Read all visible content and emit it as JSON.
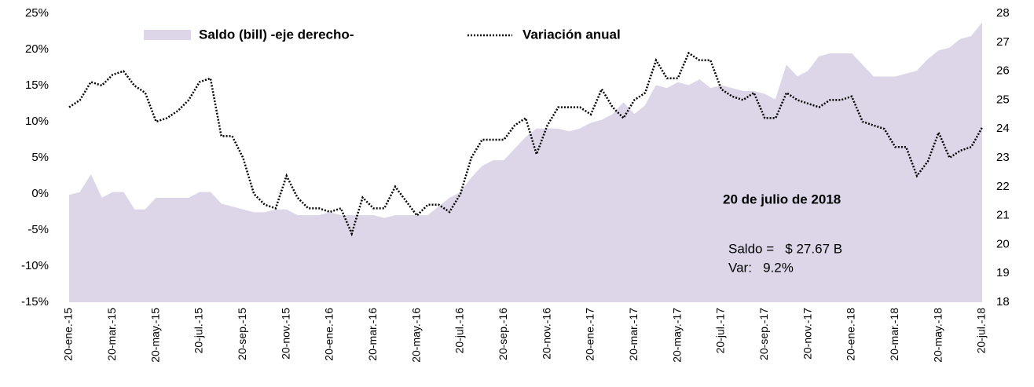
{
  "chart_data": {
    "type": "line",
    "categories": [
      "20-ene.-15",
      null,
      null,
      null,
      "20-mar.-15",
      null,
      null,
      null,
      "20-may.-15",
      null,
      null,
      null,
      "20-jul.-15",
      null,
      null,
      null,
      "20-sep.-15",
      null,
      null,
      null,
      "20-nov.-15",
      null,
      null,
      null,
      "20-ene.-16",
      null,
      null,
      null,
      "20-mar.-16",
      null,
      null,
      null,
      "20-may.-16",
      null,
      null,
      null,
      "20-jul.-16",
      null,
      null,
      null,
      "20-sep.-16",
      null,
      null,
      null,
      "20-nov.-16",
      null,
      null,
      null,
      "20-ene.-17",
      null,
      null,
      null,
      "20-mar.-17",
      null,
      null,
      null,
      "20-may.-17",
      null,
      null,
      null,
      "20-jul.-17",
      null,
      null,
      null,
      "20-sep.-17",
      null,
      null,
      null,
      "20-nov.-17",
      null,
      null,
      null,
      "20-ene.-18",
      null,
      null,
      null,
      "20-mar.-18",
      null,
      null,
      null,
      "20-may.-18",
      null,
      null,
      null,
      "20-jul.-18"
    ],
    "series": [
      {
        "name": "Saldo (bill) -eje derecho-",
        "kind": "area",
        "axis": "y2",
        "color": "#dcd6e8",
        "values": [
          21.7,
          21.8,
          22.4,
          21.6,
          21.8,
          21.8,
          21.2,
          21.2,
          21.6,
          21.6,
          21.6,
          21.6,
          21.8,
          21.8,
          21.4,
          21.3,
          21.2,
          21.1,
          21.1,
          21.2,
          21.2,
          21.0,
          21.0,
          21.0,
          21.1,
          21.0,
          21.0,
          21.0,
          21.0,
          20.9,
          21.0,
          21.0,
          21.0,
          21.0,
          21.3,
          21.6,
          21.8,
          22.3,
          22.7,
          22.9,
          22.9,
          23.3,
          23.7,
          24.0,
          24.0,
          24.0,
          23.9,
          24.0,
          24.2,
          24.3,
          24.5,
          24.9,
          24.5,
          24.8,
          25.5,
          25.4,
          25.6,
          25.5,
          25.7,
          25.4,
          25.5,
          25.4,
          25.3,
          25.3,
          25.2,
          25.0,
          26.2,
          25.8,
          26.0,
          26.5,
          26.6,
          26.6,
          26.6,
          26.2,
          25.8,
          25.8,
          25.8,
          25.9,
          26.0,
          26.4,
          26.7,
          26.8,
          27.1,
          27.2,
          27.67
        ]
      },
      {
        "name": "Variación anual",
        "kind": "line",
        "axis": "y",
        "color": "#000000",
        "values": [
          12,
          13,
          15.5,
          15,
          16.5,
          17,
          15,
          14,
          10,
          10.5,
          11.5,
          13,
          15.5,
          16,
          8,
          8,
          5,
          0,
          -1.5,
          -2,
          2.5,
          -0.5,
          -2,
          -2,
          -2.5,
          -2,
          -5.5,
          -0.5,
          -2,
          -2,
          1,
          -1,
          -3,
          -1.5,
          -1.5,
          -2.5,
          0,
          5,
          7.5,
          7.5,
          7.5,
          9.5,
          10.5,
          5.5,
          9.5,
          12,
          12,
          12,
          11,
          14.5,
          12,
          10.5,
          13,
          14,
          18.5,
          16,
          16,
          19.5,
          18.5,
          18.5,
          14.5,
          13.5,
          13,
          14,
          10.5,
          10.5,
          14,
          13,
          12.5,
          12,
          13,
          13,
          13.5,
          10,
          9.5,
          9,
          6.5,
          6.5,
          2.5,
          4.5,
          8.5,
          5,
          6,
          6.5,
          9.2
        ]
      }
    ],
    "ylim": [
      -15,
      25
    ],
    "yticks": [
      {
        "value": -15,
        "label": "-15%"
      },
      {
        "value": -10,
        "label": "-10%"
      },
      {
        "value": -5,
        "label": "-5%"
      },
      {
        "value": 0,
        "label": "0%"
      },
      {
        "value": 5,
        "label": "5%"
      },
      {
        "value": 10,
        "label": "10%"
      },
      {
        "value": 15,
        "label": "15%"
      },
      {
        "value": 20,
        "label": "20%"
      },
      {
        "value": 25,
        "label": "25%"
      }
    ],
    "y2lim": [
      18,
      28
    ],
    "y2ticks": [
      18,
      19,
      20,
      21,
      22,
      23,
      24,
      25,
      26,
      27,
      28
    ],
    "annotations": [
      "20 de julio de 2018",
      "Saldo =   $ 27.67 B",
      "Var:   9.2%"
    ]
  }
}
